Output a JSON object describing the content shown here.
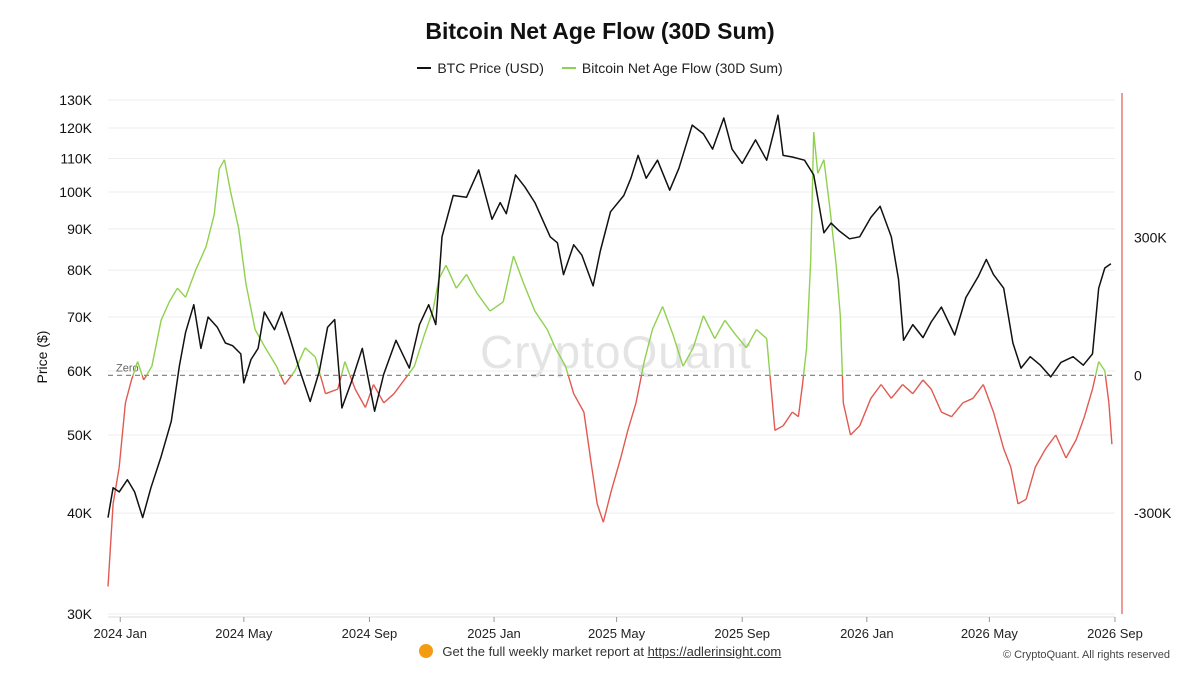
{
  "title": "Bitcoin Net Age Flow (30D Sum)",
  "legend": {
    "price_label": "BTC Price (USD)",
    "flow_label": "Bitcoin Net Age Flow (30D Sum)"
  },
  "watermark": "CryptoQuant",
  "zero_label": "Zero",
  "footer": {
    "prefix": "Get the full weekly market report at",
    "link_text": "https://adlerinsight.com",
    "copyright": "© CryptoQuant. All rights reserved"
  },
  "colors": {
    "price": "#111111",
    "flow_positive": "#8fd14f",
    "flow_negative": "#e05a52",
    "zero_line": "#888888",
    "grid": "#eeeeee"
  },
  "chart_data": {
    "type": "line",
    "title": "Bitcoin Net Age Flow (30D Sum)",
    "y_left_label": "Price ($)",
    "y_left_scale": "log",
    "y_left_ticks": [
      "30K",
      "40K",
      "50K",
      "60K",
      "70K",
      "80K",
      "90K",
      "100K",
      "110K",
      "120K",
      "130K"
    ],
    "y_left_tick_values": [
      30000,
      40000,
      50000,
      60000,
      70000,
      80000,
      90000,
      100000,
      110000,
      120000,
      130000
    ],
    "y_left_range": [
      30000,
      130000
    ],
    "y_right_ticks": [
      "300K",
      "0",
      "-300K"
    ],
    "y_right_tick_values": [
      300000,
      0,
      -300000
    ],
    "y_right_range": [
      -520000,
      600000
    ],
    "x_ticks": [
      "2024 Jan",
      "2024 May",
      "2024 Sep",
      "2025 Jan",
      "2025 May",
      "2025 Sep",
      "2026 Jan",
      "2026 May",
      "2026 Sep"
    ],
    "x_tick_dates": [
      "2024-01-01",
      "2024-05-01",
      "2024-09-01",
      "2025-01-01",
      "2025-05-01",
      "2025-09-01",
      "2026-01-01",
      "2026-05-01",
      "2026-09-01"
    ],
    "x_range": [
      "2023-12-20",
      "2026-09-01"
    ],
    "legend_position": "top-center",
    "series": [
      {
        "name": "BTC Price (USD)",
        "axis": "left",
        "points": [
          [
            "2023-12-20",
            39500
          ],
          [
            "2023-12-25",
            43000
          ],
          [
            "2023-12-31",
            42500
          ],
          [
            "2024-01-08",
            44000
          ],
          [
            "2024-01-15",
            42500
          ],
          [
            "2024-01-23",
            39500
          ],
          [
            "2024-01-31",
            43000
          ],
          [
            "2024-02-10",
            47000
          ],
          [
            "2024-02-20",
            52000
          ],
          [
            "2024-02-28",
            61000
          ],
          [
            "2024-03-05",
            67000
          ],
          [
            "2024-03-13",
            72500
          ],
          [
            "2024-03-20",
            64000
          ],
          [
            "2024-03-27",
            70000
          ],
          [
            "2024-04-05",
            68000
          ],
          [
            "2024-04-13",
            65000
          ],
          [
            "2024-04-20",
            64500
          ],
          [
            "2024-04-28",
            63000
          ],
          [
            "2024-05-01",
            58000
          ],
          [
            "2024-05-08",
            62000
          ],
          [
            "2024-05-15",
            64000
          ],
          [
            "2024-05-21",
            71000
          ],
          [
            "2024-05-31",
            67500
          ],
          [
            "2024-06-07",
            71000
          ],
          [
            "2024-06-15",
            66000
          ],
          [
            "2024-06-24",
            60500
          ],
          [
            "2024-07-05",
            55000
          ],
          [
            "2024-07-14",
            60000
          ],
          [
            "2024-07-22",
            68000
          ],
          [
            "2024-07-29",
            69500
          ],
          [
            "2024-08-05",
            54000
          ],
          [
            "2024-08-15",
            58500
          ],
          [
            "2024-08-25",
            64000
          ],
          [
            "2024-09-06",
            53500
          ],
          [
            "2024-09-15",
            59500
          ],
          [
            "2024-09-27",
            65500
          ],
          [
            "2024-10-10",
            60500
          ],
          [
            "2024-10-20",
            68500
          ],
          [
            "2024-10-29",
            72500
          ],
          [
            "2024-11-05",
            68500
          ],
          [
            "2024-11-11",
            88000
          ],
          [
            "2024-11-22",
            99000
          ],
          [
            "2024-12-05",
            98500
          ],
          [
            "2024-12-17",
            106500
          ],
          [
            "2024-12-30",
            92500
          ],
          [
            "2025-01-07",
            97000
          ],
          [
            "2025-01-13",
            94000
          ],
          [
            "2025-01-22",
            105000
          ],
          [
            "2025-01-31",
            101500
          ],
          [
            "2025-02-10",
            97000
          ],
          [
            "2025-02-25",
            88000
          ],
          [
            "2025-03-04",
            86500
          ],
          [
            "2025-03-10",
            79000
          ],
          [
            "2025-03-20",
            86000
          ],
          [
            "2025-03-28",
            83500
          ],
          [
            "2025-04-08",
            76500
          ],
          [
            "2025-04-15",
            84500
          ],
          [
            "2025-04-25",
            94500
          ],
          [
            "2025-05-08",
            99000
          ],
          [
            "2025-05-15",
            104000
          ],
          [
            "2025-05-22",
            111000
          ],
          [
            "2025-05-30",
            104000
          ],
          [
            "2025-06-10",
            109500
          ],
          [
            "2025-06-22",
            100500
          ],
          [
            "2025-07-01",
            107000
          ],
          [
            "2025-07-14",
            121000
          ],
          [
            "2025-07-25",
            118000
          ],
          [
            "2025-08-03",
            113000
          ],
          [
            "2025-08-14",
            123500
          ],
          [
            "2025-08-22",
            113000
          ],
          [
            "2025-09-01",
            108500
          ],
          [
            "2025-09-14",
            116000
          ],
          [
            "2025-09-25",
            109500
          ],
          [
            "2025-10-06",
            124500
          ],
          [
            "2025-10-11",
            111000
          ],
          [
            "2025-10-20",
            110500
          ],
          [
            "2025-11-01",
            109500
          ],
          [
            "2025-11-10",
            105000
          ],
          [
            "2025-11-20",
            89000
          ],
          [
            "2025-11-27",
            91500
          ],
          [
            "2025-12-05",
            89500
          ],
          [
            "2025-12-15",
            87500
          ],
          [
            "2025-12-25",
            88000
          ],
          [
            "2026-01-05",
            93000
          ],
          [
            "2026-01-14",
            96000
          ],
          [
            "2026-01-25",
            88000
          ],
          [
            "2026-02-01",
            78000
          ],
          [
            "2026-02-06",
            65500
          ],
          [
            "2026-02-15",
            68500
          ],
          [
            "2026-02-25",
            66000
          ],
          [
            "2026-03-05",
            69000
          ],
          [
            "2026-03-15",
            72000
          ],
          [
            "2026-03-28",
            66500
          ],
          [
            "2026-04-08",
            74000
          ],
          [
            "2026-04-20",
            78500
          ],
          [
            "2026-04-28",
            82500
          ],
          [
            "2026-05-05",
            79000
          ],
          [
            "2026-05-15",
            76000
          ],
          [
            "2026-05-24",
            65000
          ],
          [
            "2026-06-01",
            60500
          ],
          [
            "2026-06-10",
            62500
          ],
          [
            "2026-06-20",
            61000
          ],
          [
            "2026-06-30",
            59000
          ],
          [
            "2026-07-10",
            61500
          ],
          [
            "2026-07-22",
            62500
          ],
          [
            "2026-08-01",
            61000
          ],
          [
            "2026-08-10",
            63000
          ],
          [
            "2026-08-16",
            76000
          ],
          [
            "2026-08-22",
            80500
          ],
          [
            "2026-08-28",
            81500
          ]
        ]
      },
      {
        "name": "Bitcoin Net Age Flow (30D Sum)",
        "axis": "right",
        "points": [
          [
            "2023-12-20",
            -460000
          ],
          [
            "2023-12-25",
            -280000
          ],
          [
            "2023-12-31",
            -200000
          ],
          [
            "2024-01-06",
            -60000
          ],
          [
            "2024-01-12",
            -10000
          ],
          [
            "2024-01-18",
            30000
          ],
          [
            "2024-01-24",
            -10000
          ],
          [
            "2024-02-01",
            20000
          ],
          [
            "2024-02-10",
            120000
          ],
          [
            "2024-02-18",
            160000
          ],
          [
            "2024-02-26",
            190000
          ],
          [
            "2024-03-05",
            170000
          ],
          [
            "2024-03-15",
            230000
          ],
          [
            "2024-03-25",
            280000
          ],
          [
            "2024-04-02",
            350000
          ],
          [
            "2024-04-07",
            450000
          ],
          [
            "2024-04-12",
            470000
          ],
          [
            "2024-04-18",
            400000
          ],
          [
            "2024-04-26",
            320000
          ],
          [
            "2024-05-03",
            200000
          ],
          [
            "2024-05-12",
            100000
          ],
          [
            "2024-05-22",
            60000
          ],
          [
            "2024-06-02",
            20000
          ],
          [
            "2024-06-10",
            -20000
          ],
          [
            "2024-06-20",
            10000
          ],
          [
            "2024-06-30",
            60000
          ],
          [
            "2024-07-10",
            40000
          ],
          [
            "2024-07-20",
            -40000
          ],
          [
            "2024-08-01",
            -30000
          ],
          [
            "2024-08-08",
            30000
          ],
          [
            "2024-08-18",
            -30000
          ],
          [
            "2024-08-28",
            -70000
          ],
          [
            "2024-09-05",
            -20000
          ],
          [
            "2024-09-15",
            -60000
          ],
          [
            "2024-09-25",
            -40000
          ],
          [
            "2024-10-05",
            -10000
          ],
          [
            "2024-10-15",
            20000
          ],
          [
            "2024-10-25",
            90000
          ],
          [
            "2024-11-02",
            140000
          ],
          [
            "2024-11-08",
            210000
          ],
          [
            "2024-11-15",
            240000
          ],
          [
            "2024-11-25",
            190000
          ],
          [
            "2024-12-05",
            220000
          ],
          [
            "2024-12-15",
            180000
          ],
          [
            "2024-12-28",
            140000
          ],
          [
            "2025-01-10",
            160000
          ],
          [
            "2025-01-20",
            260000
          ],
          [
            "2025-01-30",
            200000
          ],
          [
            "2025-02-10",
            140000
          ],
          [
            "2025-02-22",
            100000
          ],
          [
            "2025-03-02",
            60000
          ],
          [
            "2025-03-12",
            20000
          ],
          [
            "2025-03-20",
            -40000
          ],
          [
            "2025-03-30",
            -80000
          ],
          [
            "2025-04-06",
            -190000
          ],
          [
            "2025-04-12",
            -280000
          ],
          [
            "2025-04-18",
            -320000
          ],
          [
            "2025-04-26",
            -250000
          ],
          [
            "2025-05-05",
            -180000
          ],
          [
            "2025-05-12",
            -120000
          ],
          [
            "2025-05-20",
            -60000
          ],
          [
            "2025-05-28",
            30000
          ],
          [
            "2025-06-05",
            100000
          ],
          [
            "2025-06-15",
            150000
          ],
          [
            "2025-06-25",
            90000
          ],
          [
            "2025-07-05",
            20000
          ],
          [
            "2025-07-15",
            60000
          ],
          [
            "2025-07-25",
            130000
          ],
          [
            "2025-08-05",
            80000
          ],
          [
            "2025-08-15",
            120000
          ],
          [
            "2025-08-25",
            90000
          ],
          [
            "2025-09-05",
            60000
          ],
          [
            "2025-09-15",
            100000
          ],
          [
            "2025-09-25",
            80000
          ],
          [
            "2025-10-03",
            -120000
          ],
          [
            "2025-10-11",
            -110000
          ],
          [
            "2025-10-20",
            -80000
          ],
          [
            "2025-10-26",
            -90000
          ],
          [
            "2025-10-30",
            -20000
          ],
          [
            "2025-11-03",
            60000
          ],
          [
            "2025-11-07",
            250000
          ],
          [
            "2025-11-10",
            530000
          ],
          [
            "2025-11-14",
            440000
          ],
          [
            "2025-11-20",
            470000
          ],
          [
            "2025-11-26",
            360000
          ],
          [
            "2025-12-02",
            240000
          ],
          [
            "2025-12-06",
            130000
          ],
          [
            "2025-12-09",
            -60000
          ],
          [
            "2025-12-16",
            -130000
          ],
          [
            "2025-12-25",
            -110000
          ],
          [
            "2026-01-05",
            -50000
          ],
          [
            "2026-01-15",
            -20000
          ],
          [
            "2026-01-25",
            -50000
          ],
          [
            "2026-02-05",
            -20000
          ],
          [
            "2026-02-15",
            -40000
          ],
          [
            "2026-02-25",
            -10000
          ],
          [
            "2026-03-05",
            -30000
          ],
          [
            "2026-03-15",
            -80000
          ],
          [
            "2026-03-25",
            -90000
          ],
          [
            "2026-04-05",
            -60000
          ],
          [
            "2026-04-15",
            -50000
          ],
          [
            "2026-04-25",
            -20000
          ],
          [
            "2026-05-05",
            -80000
          ],
          [
            "2026-05-15",
            -160000
          ],
          [
            "2026-05-22",
            -200000
          ],
          [
            "2026-05-29",
            -280000
          ],
          [
            "2026-06-06",
            -270000
          ],
          [
            "2026-06-15",
            -200000
          ],
          [
            "2026-06-25",
            -160000
          ],
          [
            "2026-07-05",
            -130000
          ],
          [
            "2026-07-15",
            -180000
          ],
          [
            "2026-07-25",
            -140000
          ],
          [
            "2026-08-02",
            -90000
          ],
          [
            "2026-08-10",
            -30000
          ],
          [
            "2026-08-16",
            30000
          ],
          [
            "2026-08-22",
            10000
          ],
          [
            "2026-08-26",
            -60000
          ],
          [
            "2026-08-29",
            -150000
          ]
        ]
      }
    ]
  }
}
